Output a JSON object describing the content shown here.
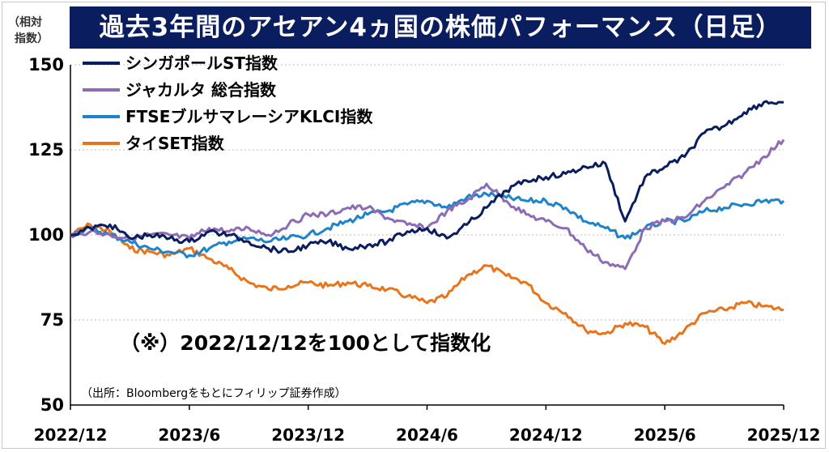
{
  "chart_data": {
    "type": "line",
    "title": "過去3年間のアセアン4ヵ国の株価パフォーマンス（日足）",
    "ylabel": "（相対指数）",
    "xlabel": "",
    "ylim": [
      50,
      150
    ],
    "yticks": [
      50,
      75,
      100,
      125,
      150
    ],
    "xlim": [
      "2022-12",
      "2025-12"
    ],
    "xticks": [
      "2022/12",
      "2023/6",
      "2023/12",
      "2024/6",
      "2024/12",
      "2025/6",
      "2025/12"
    ],
    "grid": "horizontal",
    "legend": "top-left",
    "annotation": "（※）2022/12/12を100として指数化",
    "source": "（出所：Bloombergをもとにフィリップ証券作成）",
    "series": [
      {
        "name": "シンガポールST指数",
        "color": "#0a1e5f",
        "x": [
          "2022-12",
          "2023-01",
          "2023-02",
          "2023-03",
          "2023-04",
          "2023-05",
          "2023-06",
          "2023-07",
          "2023-08",
          "2023-09",
          "2023-10",
          "2023-11",
          "2023-12",
          "2024-01",
          "2024-02",
          "2024-03",
          "2024-04",
          "2024-05",
          "2024-06",
          "2024-07",
          "2024-08",
          "2024-09",
          "2024-10",
          "2024-11",
          "2024-12",
          "2025-01",
          "2025-02",
          "2025-03",
          "2025-04",
          "2025-05",
          "2025-06",
          "2025-07",
          "2025-08",
          "2025-09",
          "2025-10",
          "2025-11",
          "2025-12"
        ],
        "values": [
          100,
          102,
          103,
          99,
          100,
          99,
          98,
          101,
          100,
          98,
          96,
          95,
          97,
          98,
          96,
          97,
          98,
          101,
          102,
          99,
          103,
          108,
          113,
          116,
          117,
          118,
          120,
          121,
          104,
          117,
          120,
          123,
          130,
          132,
          136,
          139,
          139
        ]
      },
      {
        "name": "ジャカルタ 総合指数",
        "color": "#8c6cb5",
        "x": [
          "2022-12",
          "2023-01",
          "2023-02",
          "2023-03",
          "2023-04",
          "2023-05",
          "2023-06",
          "2023-07",
          "2023-08",
          "2023-09",
          "2023-10",
          "2023-11",
          "2023-12",
          "2024-01",
          "2024-02",
          "2024-03",
          "2024-04",
          "2024-05",
          "2024-06",
          "2024-07",
          "2024-08",
          "2024-09",
          "2024-10",
          "2024-11",
          "2024-12",
          "2025-01",
          "2025-02",
          "2025-03",
          "2025-04",
          "2025-05",
          "2025-06",
          "2025-07",
          "2025-08",
          "2025-09",
          "2025-10",
          "2025-11",
          "2025-12"
        ],
        "values": [
          100,
          101,
          100,
          99,
          100,
          100,
          99,
          102,
          101,
          102,
          100,
          103,
          106,
          106,
          108,
          108,
          105,
          103,
          102,
          107,
          110,
          115,
          110,
          106,
          104,
          102,
          96,
          92,
          90,
          102,
          104,
          105,
          110,
          114,
          118,
          123,
          128
        ]
      },
      {
        "name": "FTSEブルサマレーシアKLCI指数",
        "color": "#1f83c9",
        "x": [
          "2022-12",
          "2023-01",
          "2023-02",
          "2023-03",
          "2023-04",
          "2023-05",
          "2023-06",
          "2023-07",
          "2023-08",
          "2023-09",
          "2023-10",
          "2023-11",
          "2023-12",
          "2024-01",
          "2024-02",
          "2024-03",
          "2024-04",
          "2024-05",
          "2024-06",
          "2024-07",
          "2024-08",
          "2024-09",
          "2024-10",
          "2024-11",
          "2024-12",
          "2025-01",
          "2025-02",
          "2025-03",
          "2025-04",
          "2025-05",
          "2025-06",
          "2025-07",
          "2025-08",
          "2025-09",
          "2025-10",
          "2025-11",
          "2025-12"
        ],
        "values": [
          100,
          102,
          100,
          98,
          96,
          95,
          94,
          96,
          98,
          99,
          98,
          99,
          100,
          102,
          104,
          106,
          107,
          109,
          110,
          108,
          111,
          112,
          111,
          110,
          110,
          108,
          104,
          102,
          99,
          102,
          104,
          104,
          107,
          108,
          109,
          110,
          110
        ]
      },
      {
        "name": "タイSET指数",
        "color": "#e8741c",
        "x": [
          "2022-12",
          "2023-01",
          "2023-02",
          "2023-03",
          "2023-04",
          "2023-05",
          "2023-06",
          "2023-07",
          "2023-08",
          "2023-09",
          "2023-10",
          "2023-11",
          "2023-12",
          "2024-01",
          "2024-02",
          "2024-03",
          "2024-04",
          "2024-05",
          "2024-06",
          "2024-07",
          "2024-08",
          "2024-09",
          "2024-10",
          "2024-11",
          "2024-12",
          "2025-01",
          "2025-02",
          "2025-03",
          "2025-04",
          "2025-05",
          "2025-06",
          "2025-07",
          "2025-08",
          "2025-09",
          "2025-10",
          "2025-11",
          "2025-12"
        ],
        "values": [
          100,
          103,
          101,
          96,
          95,
          94,
          96,
          93,
          90,
          86,
          84,
          85,
          86,
          85,
          86,
          85,
          84,
          82,
          80,
          82,
          88,
          91,
          88,
          86,
          80,
          77,
          72,
          71,
          74,
          73,
          68,
          72,
          77,
          78,
          80,
          79,
          78
        ]
      }
    ]
  }
}
